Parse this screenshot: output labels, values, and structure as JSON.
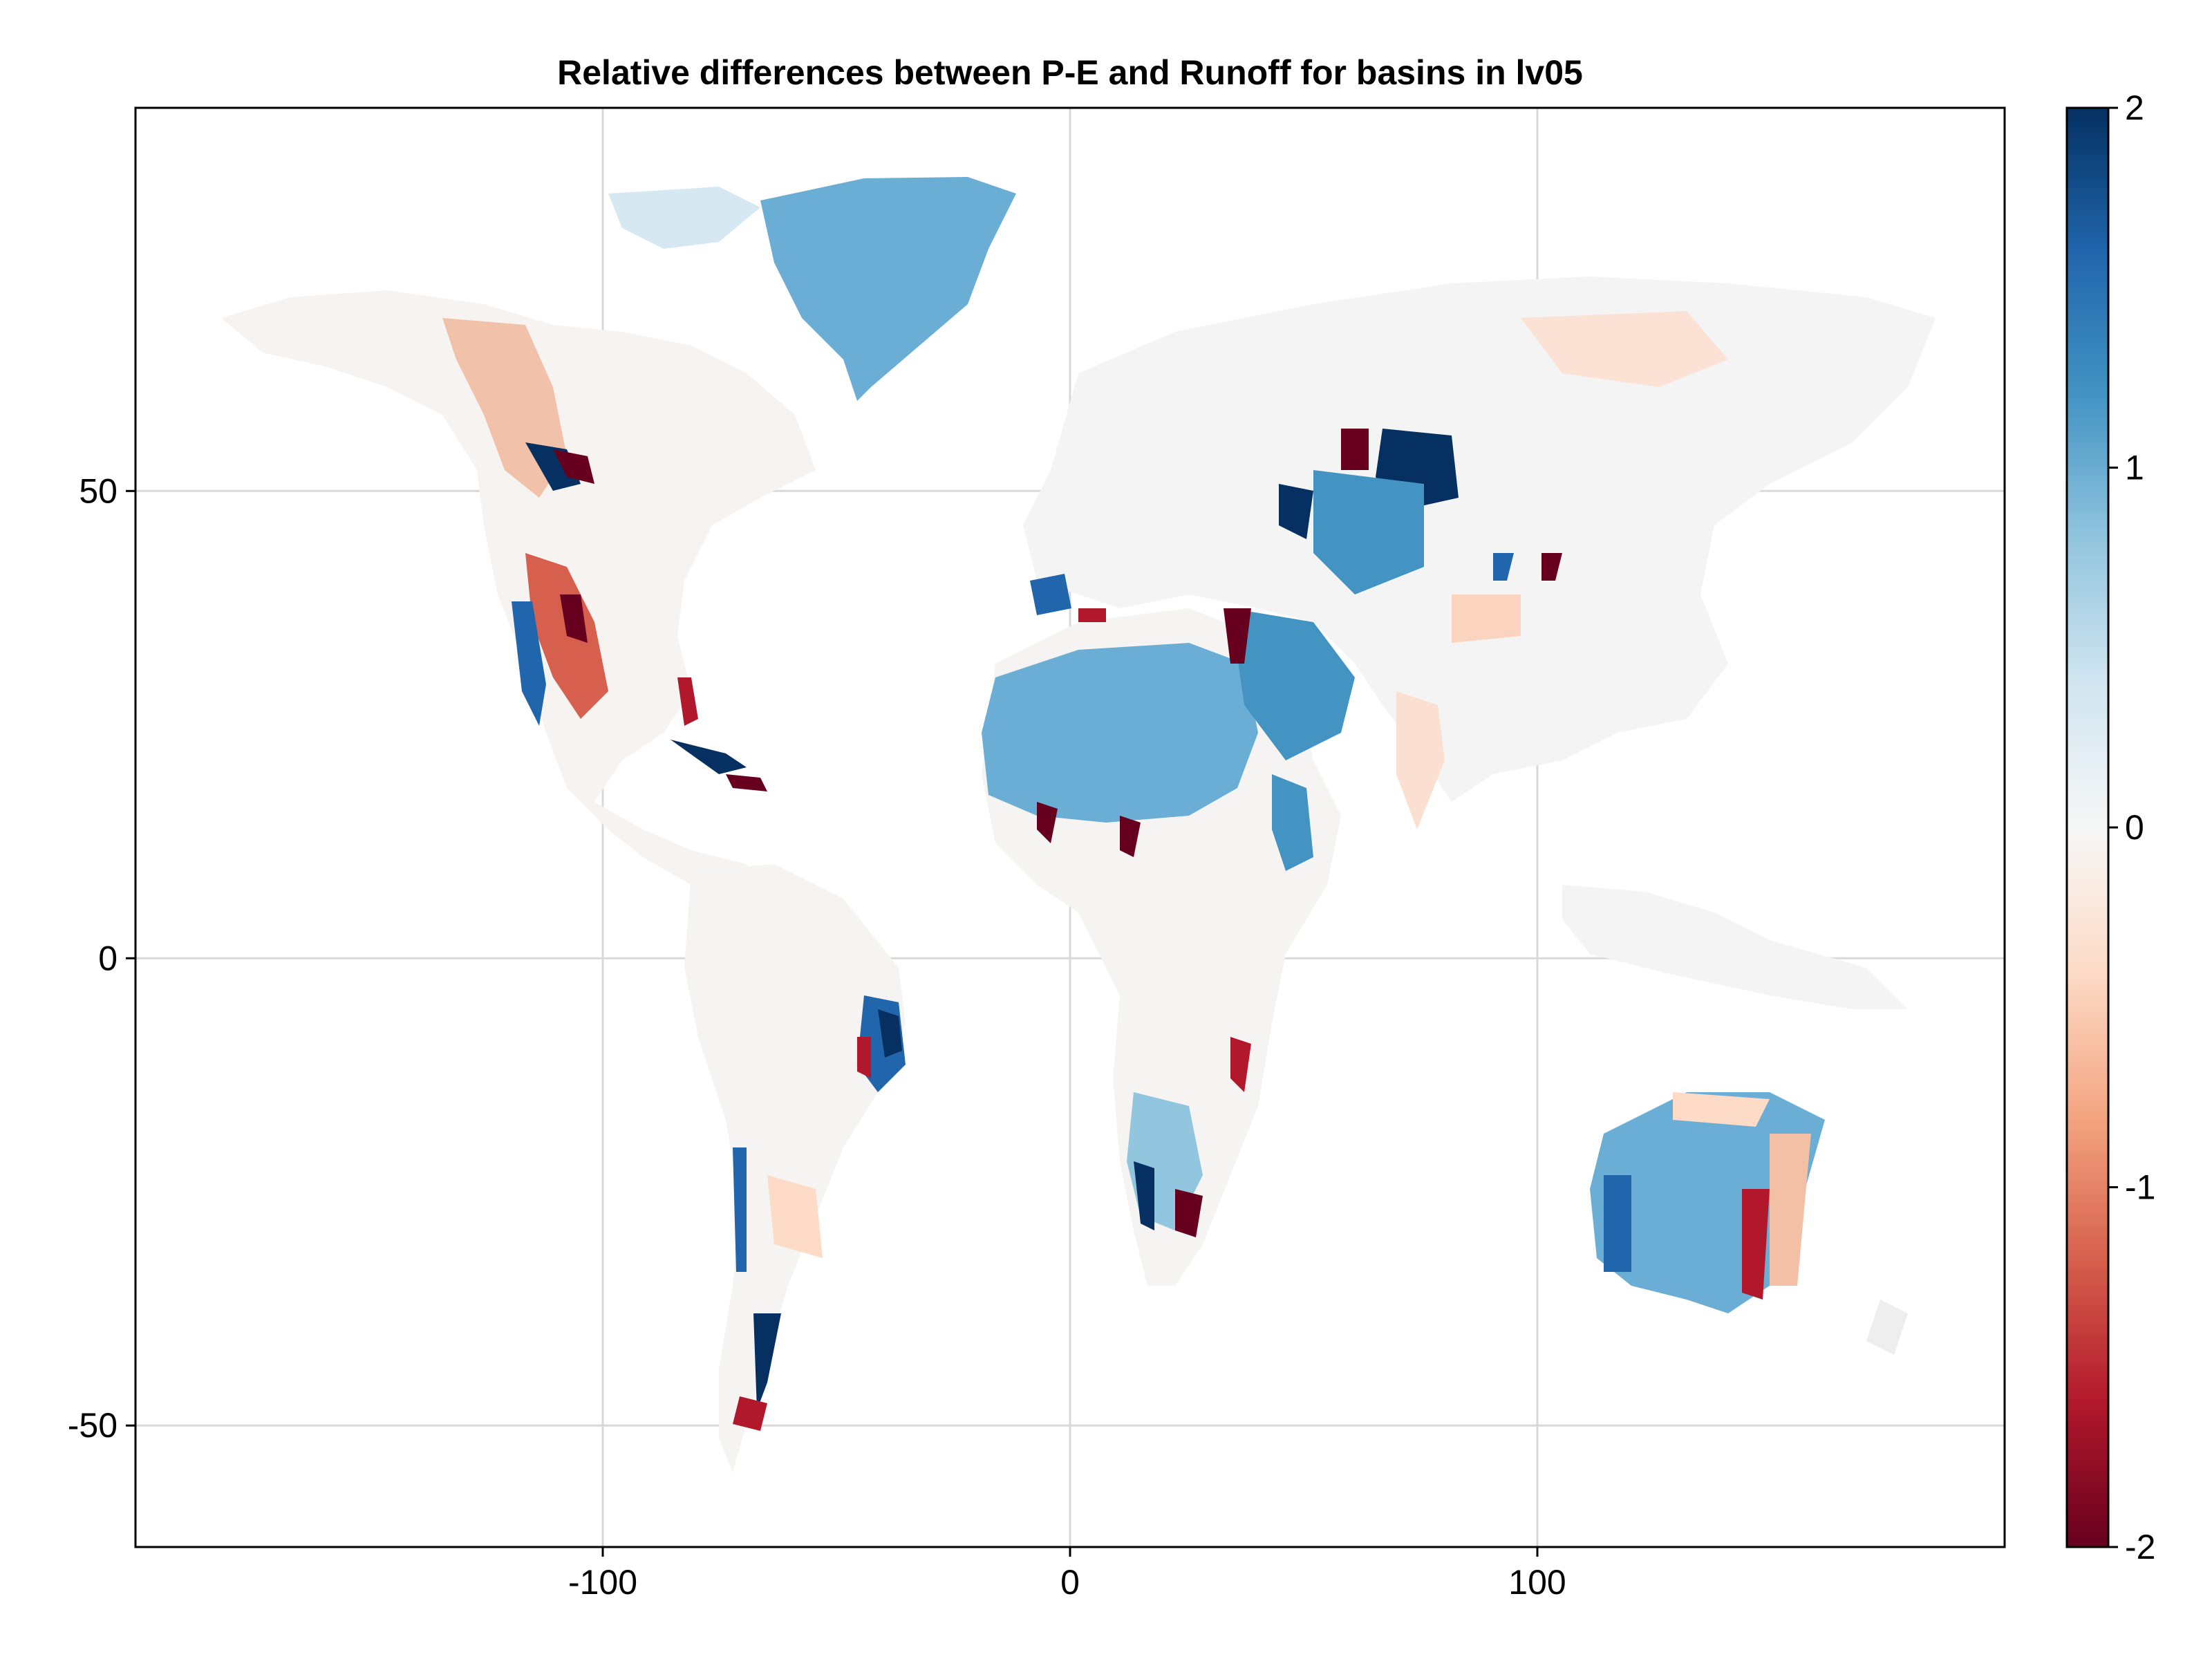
{
  "chart_data": {
    "type": "choropleth-map",
    "title": "Relative differences between P-E and Runoff for basins in lv05",
    "xlabel": "",
    "ylabel": "",
    "xlim": [
      -200,
      200
    ],
    "ylim": [
      -63,
      91
    ],
    "x_ticks": [
      -100,
      0,
      100
    ],
    "x_tick_labels": [
      "-100",
      "0",
      "100"
    ],
    "y_ticks": [
      50,
      0,
      -50
    ],
    "y_tick_labels": [
      "50",
      "0",
      "-50"
    ],
    "grid": true,
    "colorbar": {
      "colormap": "RdBu (diverging, red = negative, blue = positive)",
      "range": [
        -2,
        2
      ],
      "ticks": [
        2,
        1,
        0,
        -1,
        -2
      ],
      "tick_labels": [
        "2",
        "1",
        "0",
        "-1",
        "-2"
      ],
      "colors": [
        "#67001f",
        "#b2182b",
        "#d6604d",
        "#f4a582",
        "#fddbc7",
        "#f7f7f7",
        "#d1e5f0",
        "#92c5de",
        "#4393c3",
        "#2166ac",
        "#053061"
      ]
    },
    "regions": [
      {
        "name": "Greenland",
        "value": 0.9
      },
      {
        "name": "Sahara / Arabia",
        "value": 0.9
      },
      {
        "name": "Central Asia",
        "value": 1.3
      },
      {
        "name": "Western Siberia",
        "value": 2.0
      },
      {
        "name": "Western Canada",
        "value": -0.5
      },
      {
        "name": "Southwest USA / Mexico",
        "value": -1.2
      },
      {
        "name": "Eastern Brazil",
        "value": 1.8
      },
      {
        "name": "Southern Africa",
        "value": 0.5
      },
      {
        "name": "Australia",
        "value": 0.9
      },
      {
        "name": "Patagonia",
        "value": 1.0
      },
      {
        "name": "Amazon",
        "value": 0.0
      },
      {
        "name": "Siberia",
        "value": -0.05
      }
    ]
  }
}
